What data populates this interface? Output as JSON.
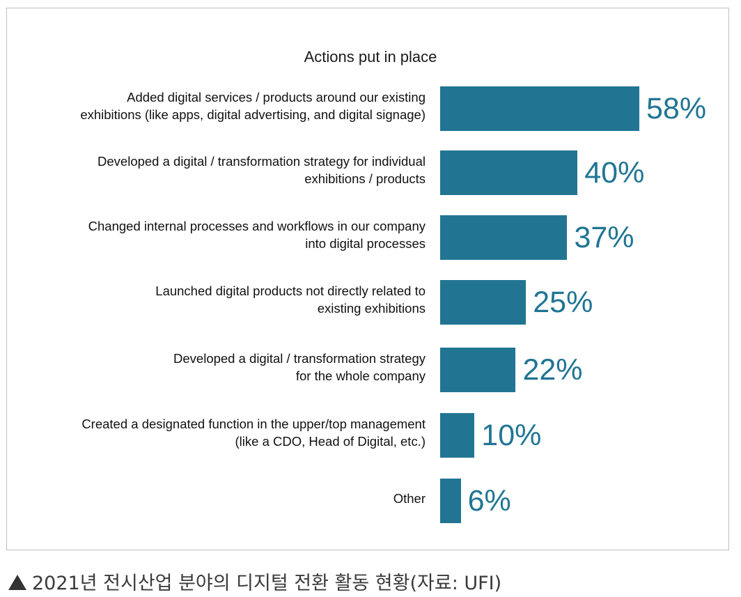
{
  "chart_data": {
    "type": "bar",
    "orientation": "horizontal",
    "title": "Actions put in place",
    "categories": [
      "Added digital services / products around our existing\nexhibitions (like apps, digital advertising, and digital signage)",
      "Developed a digital / transformation strategy for individual\nexhibitions / products",
      "Changed internal processes and workflows in our company\ninto digital processes",
      "Launched digital products not directly related to\nexisting exhibitions",
      "Developed a digital / transformation strategy\nfor the whole company",
      "Created a designated function in the upper/top management\n(like a CDO, Head of Digital, etc.)",
      "Other"
    ],
    "values": [
      58,
      40,
      37,
      25,
      22,
      10,
      6
    ],
    "value_labels": [
      "58%",
      "40%",
      "37%",
      "25%",
      "22%",
      "10%",
      "6%"
    ],
    "bar_color": "#217593",
    "grid": false,
    "legend": "none"
  },
  "caption": {
    "icon": "triangle-up-icon",
    "text": "2021년 전시산업 분야의 디지털 전환 활동 현황(자료: UFI)"
  }
}
